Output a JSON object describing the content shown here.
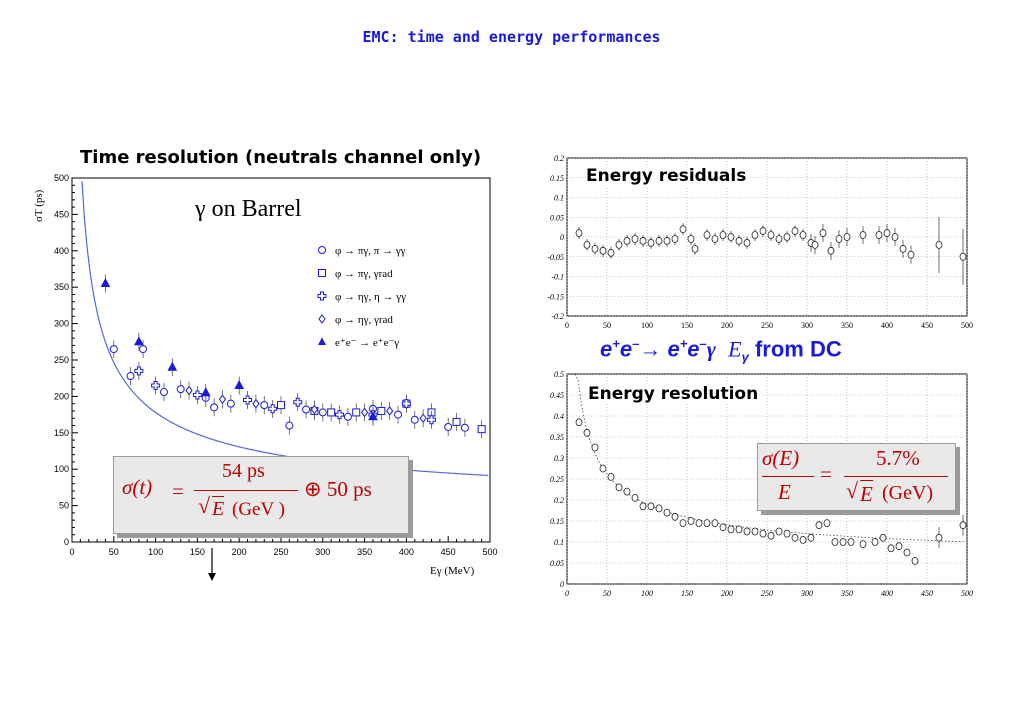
{
  "slide": {
    "title": "EMC: time and energy performances"
  },
  "left_panel": {
    "title": "Time resolution (neutrals channel only)",
    "inner_title": "γ on Barrel",
    "formula": {
      "lhs": "σ(t)",
      "eq": "=",
      "numerator": "54 ps",
      "sqrt": "√",
      "denominator_var": "E",
      "denominator_unit": "(GeV )",
      "oplus_term": "⊕ 50 ps"
    }
  },
  "top_right_panel": {
    "title": "Energy residuals"
  },
  "bottom_right_panel": {
    "title": "Energy resolution",
    "formula": {
      "numerator_lhs": "σ(E)",
      "denominator_lhs": "E",
      "eq": "=",
      "numerator_rhs": "5.7%",
      "sqrt": "√",
      "denominator_var": "E",
      "denominator_unit": "(GeV)"
    }
  },
  "caption": {
    "e1": "e",
    "s1": "+",
    "e2": "e",
    "s2": "–",
    "arrow": "→",
    "e3": "e",
    "s3": "+",
    "e4": "e",
    "s4": "–",
    "gamma": "γ",
    "eg": "E",
    "eg_sub": "γ",
    "tail": "from DC"
  },
  "colors": {
    "blue": "#1a1adc",
    "red": "#c00000",
    "fit": "#5566dd"
  },
  "chart_data": [
    {
      "type": "scatter",
      "ylabel": "σT (ps)",
      "xlabel": "Eγ (MeV)",
      "xlim": [
        0,
        500
      ],
      "ylim": [
        0,
        500
      ],
      "xticks": [
        0,
        50,
        100,
        150,
        200,
        250,
        300,
        350,
        400,
        450,
        500
      ],
      "yticks": [
        0,
        50,
        100,
        150,
        200,
        250,
        300,
        350,
        400,
        450,
        500
      ],
      "legend_position": "top-right",
      "series": [
        {
          "name": "φ → πγ, π → γγ",
          "marker": "circle",
          "points": [
            [
              50,
              265
            ],
            [
              70,
              228
            ],
            [
              85,
              265
            ],
            [
              110,
              206
            ],
            [
              130,
              210
            ],
            [
              160,
              198
            ],
            [
              170,
              185
            ],
            [
              190,
              190
            ],
            [
              230,
              188
            ],
            [
              260,
              160
            ],
            [
              280,
              182
            ],
            [
              300,
              178
            ],
            [
              330,
              172
            ],
            [
              360,
              183
            ],
            [
              390,
              175
            ],
            [
              410,
              168
            ],
            [
              450,
              158
            ],
            [
              470,
              157
            ]
          ]
        },
        {
          "name": "φ → πγ, γrad",
          "marker": "square",
          "points": [
            [
              250,
              188
            ],
            [
              290,
              180
            ],
            [
              310,
              178
            ],
            [
              340,
              178
            ],
            [
              370,
              180
            ],
            [
              400,
              190
            ],
            [
              430,
              178
            ],
            [
              460,
              165
            ],
            [
              490,
              155
            ]
          ]
        },
        {
          "name": "φ → ηγ, η → γγ",
          "marker": "cross",
          "points": [
            [
              80,
              235
            ],
            [
              100,
              215
            ],
            [
              150,
              202
            ],
            [
              210,
              195
            ],
            [
              240,
              183
            ],
            [
              270,
              192
            ],
            [
              320,
              175
            ],
            [
              360,
              175
            ],
            [
              400,
              190
            ],
            [
              430,
              168
            ]
          ]
        },
        {
          "name": "φ → ηγ, γrad",
          "marker": "diamond",
          "points": [
            [
              140,
              208
            ],
            [
              180,
              196
            ],
            [
              220,
              190
            ],
            [
              290,
              182
            ],
            [
              350,
              178
            ],
            [
              380,
              180
            ],
            [
              420,
              170
            ]
          ]
        },
        {
          "name": "e⁺e⁻ → e⁺e⁻γ",
          "marker": "filled-triangle",
          "points": [
            [
              40,
              355
            ],
            [
              80,
              275
            ],
            [
              120,
              240
            ],
            [
              160,
              205
            ],
            [
              200,
              215
            ],
            [
              360,
              172
            ]
          ]
        }
      ],
      "fit": {
        "formula": "σ(t) = 54 ps/√E(GeV) ⊕ 50 ps"
      }
    },
    {
      "type": "scatter",
      "xlim": [
        0,
        500
      ],
      "ylim": [
        -0.2,
        0.2
      ],
      "xticks": [
        0,
        50,
        100,
        150,
        200,
        250,
        300,
        350,
        400,
        450,
        500
      ],
      "yticks": [
        -0.2,
        -0.15,
        -0.1,
        -0.05,
        0,
        0.05,
        0.1,
        0.15,
        0.2
      ],
      "points": [
        [
          15,
          0.01
        ],
        [
          25,
          -0.02
        ],
        [
          35,
          -0.03
        ],
        [
          45,
          -0.035
        ],
        [
          55,
          -0.04
        ],
        [
          65,
          -0.02
        ],
        [
          75,
          -0.01
        ],
        [
          85,
          -0.005
        ],
        [
          95,
          -0.01
        ],
        [
          105,
          -0.015
        ],
        [
          115,
          -0.01
        ],
        [
          125,
          -0.01
        ],
        [
          135,
          -0.005
        ],
        [
          145,
          0.02
        ],
        [
          155,
          -0.005
        ],
        [
          160,
          -0.03
        ],
        [
          175,
          0.005
        ],
        [
          185,
          -0.005
        ],
        [
          195,
          0.005
        ],
        [
          205,
          0.0
        ],
        [
          215,
          -0.01
        ],
        [
          225,
          -0.015
        ],
        [
          235,
          0.005
        ],
        [
          245,
          0.015
        ],
        [
          255,
          0.005
        ],
        [
          265,
          -0.005
        ],
        [
          275,
          0.0
        ],
        [
          285,
          0.015
        ],
        [
          295,
          0.005
        ],
        [
          305,
          -0.015
        ],
        [
          310,
          -0.02
        ],
        [
          320,
          0.01
        ],
        [
          330,
          -0.035
        ],
        [
          340,
          -0.005
        ],
        [
          350,
          0.0
        ],
        [
          370,
          0.005
        ],
        [
          390,
          0.005
        ],
        [
          400,
          0.01
        ],
        [
          410,
          0.0
        ],
        [
          420,
          -0.03
        ],
        [
          430,
          -0.045
        ],
        [
          465,
          -0.02
        ],
        [
          495,
          -0.05
        ]
      ]
    },
    {
      "type": "scatter",
      "xlim": [
        0,
        500
      ],
      "ylim": [
        0,
        0.5
      ],
      "xticks": [
        0,
        50,
        100,
        150,
        200,
        250,
        300,
        350,
        400,
        450,
        500
      ],
      "yticks": [
        0,
        0.05,
        0.1,
        0.15,
        0.2,
        0.25,
        0.3,
        0.35,
        0.4,
        0.45,
        0.5
      ],
      "points": [
        [
          15,
          0.385
        ],
        [
          25,
          0.36
        ],
        [
          35,
          0.325
        ],
        [
          45,
          0.275
        ],
        [
          55,
          0.255
        ],
        [
          65,
          0.23
        ],
        [
          75,
          0.22
        ],
        [
          85,
          0.205
        ],
        [
          95,
          0.185
        ],
        [
          105,
          0.185
        ],
        [
          115,
          0.18
        ],
        [
          125,
          0.17
        ],
        [
          135,
          0.16
        ],
        [
          145,
          0.145
        ],
        [
          155,
          0.15
        ],
        [
          165,
          0.145
        ],
        [
          175,
          0.145
        ],
        [
          185,
          0.145
        ],
        [
          195,
          0.135
        ],
        [
          205,
          0.13
        ],
        [
          215,
          0.13
        ],
        [
          225,
          0.125
        ],
        [
          235,
          0.125
        ],
        [
          245,
          0.12
        ],
        [
          255,
          0.115
        ],
        [
          265,
          0.125
        ],
        [
          275,
          0.12
        ],
        [
          285,
          0.11
        ],
        [
          295,
          0.105
        ],
        [
          305,
          0.11
        ],
        [
          315,
          0.14
        ],
        [
          325,
          0.145
        ],
        [
          335,
          0.1
        ],
        [
          345,
          0.1
        ],
        [
          355,
          0.1
        ],
        [
          370,
          0.095
        ],
        [
          385,
          0.1
        ],
        [
          395,
          0.11
        ],
        [
          405,
          0.085
        ],
        [
          415,
          0.09
        ],
        [
          425,
          0.075
        ],
        [
          435,
          0.055
        ],
        [
          465,
          0.11
        ],
        [
          495,
          0.14
        ]
      ],
      "fit": {
        "formula": "σ(E)/E = 5.7%/√E(GeV)"
      }
    }
  ]
}
